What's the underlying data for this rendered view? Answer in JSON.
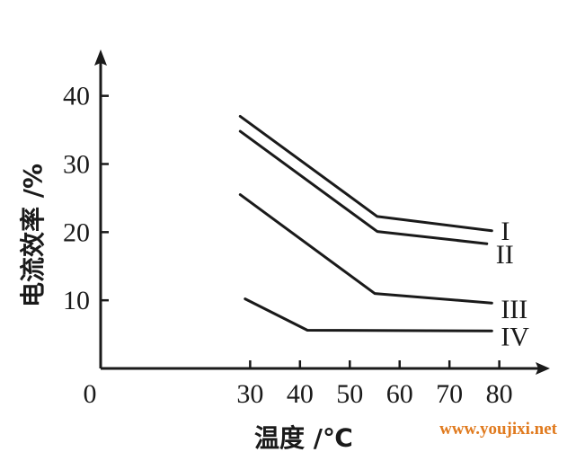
{
  "chart_data": {
    "type": "line",
    "xlabel": "温度 /℃",
    "ylabel": "电流效率 /%",
    "xlim": [
      0,
      88
    ],
    "ylim": [
      0,
      48
    ],
    "origin_label": "0",
    "x_ticks": [
      30,
      40,
      50,
      60,
      70,
      80
    ],
    "x_tick_labels": [
      "30",
      "40",
      "50",
      "60",
      "70",
      "80"
    ],
    "y_ticks": [
      10,
      20,
      30,
      40
    ],
    "y_tick_labels": [
      "10",
      "20",
      "30",
      "40"
    ],
    "grid": false,
    "legend": "none",
    "line_color": "#1a1a1a",
    "series": [
      {
        "name": "I",
        "x": [
          28,
          55.5,
          78.5
        ],
        "y": [
          37.0,
          22.3,
          20.2
        ]
      },
      {
        "name": "II",
        "x": [
          28,
          55.5,
          77.5
        ],
        "y": [
          34.8,
          20.1,
          18.3
        ]
      },
      {
        "name": "III",
        "x": [
          28,
          55,
          78.5
        ],
        "y": [
          25.5,
          11.0,
          9.6
        ]
      },
      {
        "name": "IV",
        "x": [
          29,
          41.5,
          78.5
        ],
        "y": [
          10.2,
          5.6,
          5.5
        ]
      }
    ]
  },
  "watermark": "www.youjixi.net"
}
